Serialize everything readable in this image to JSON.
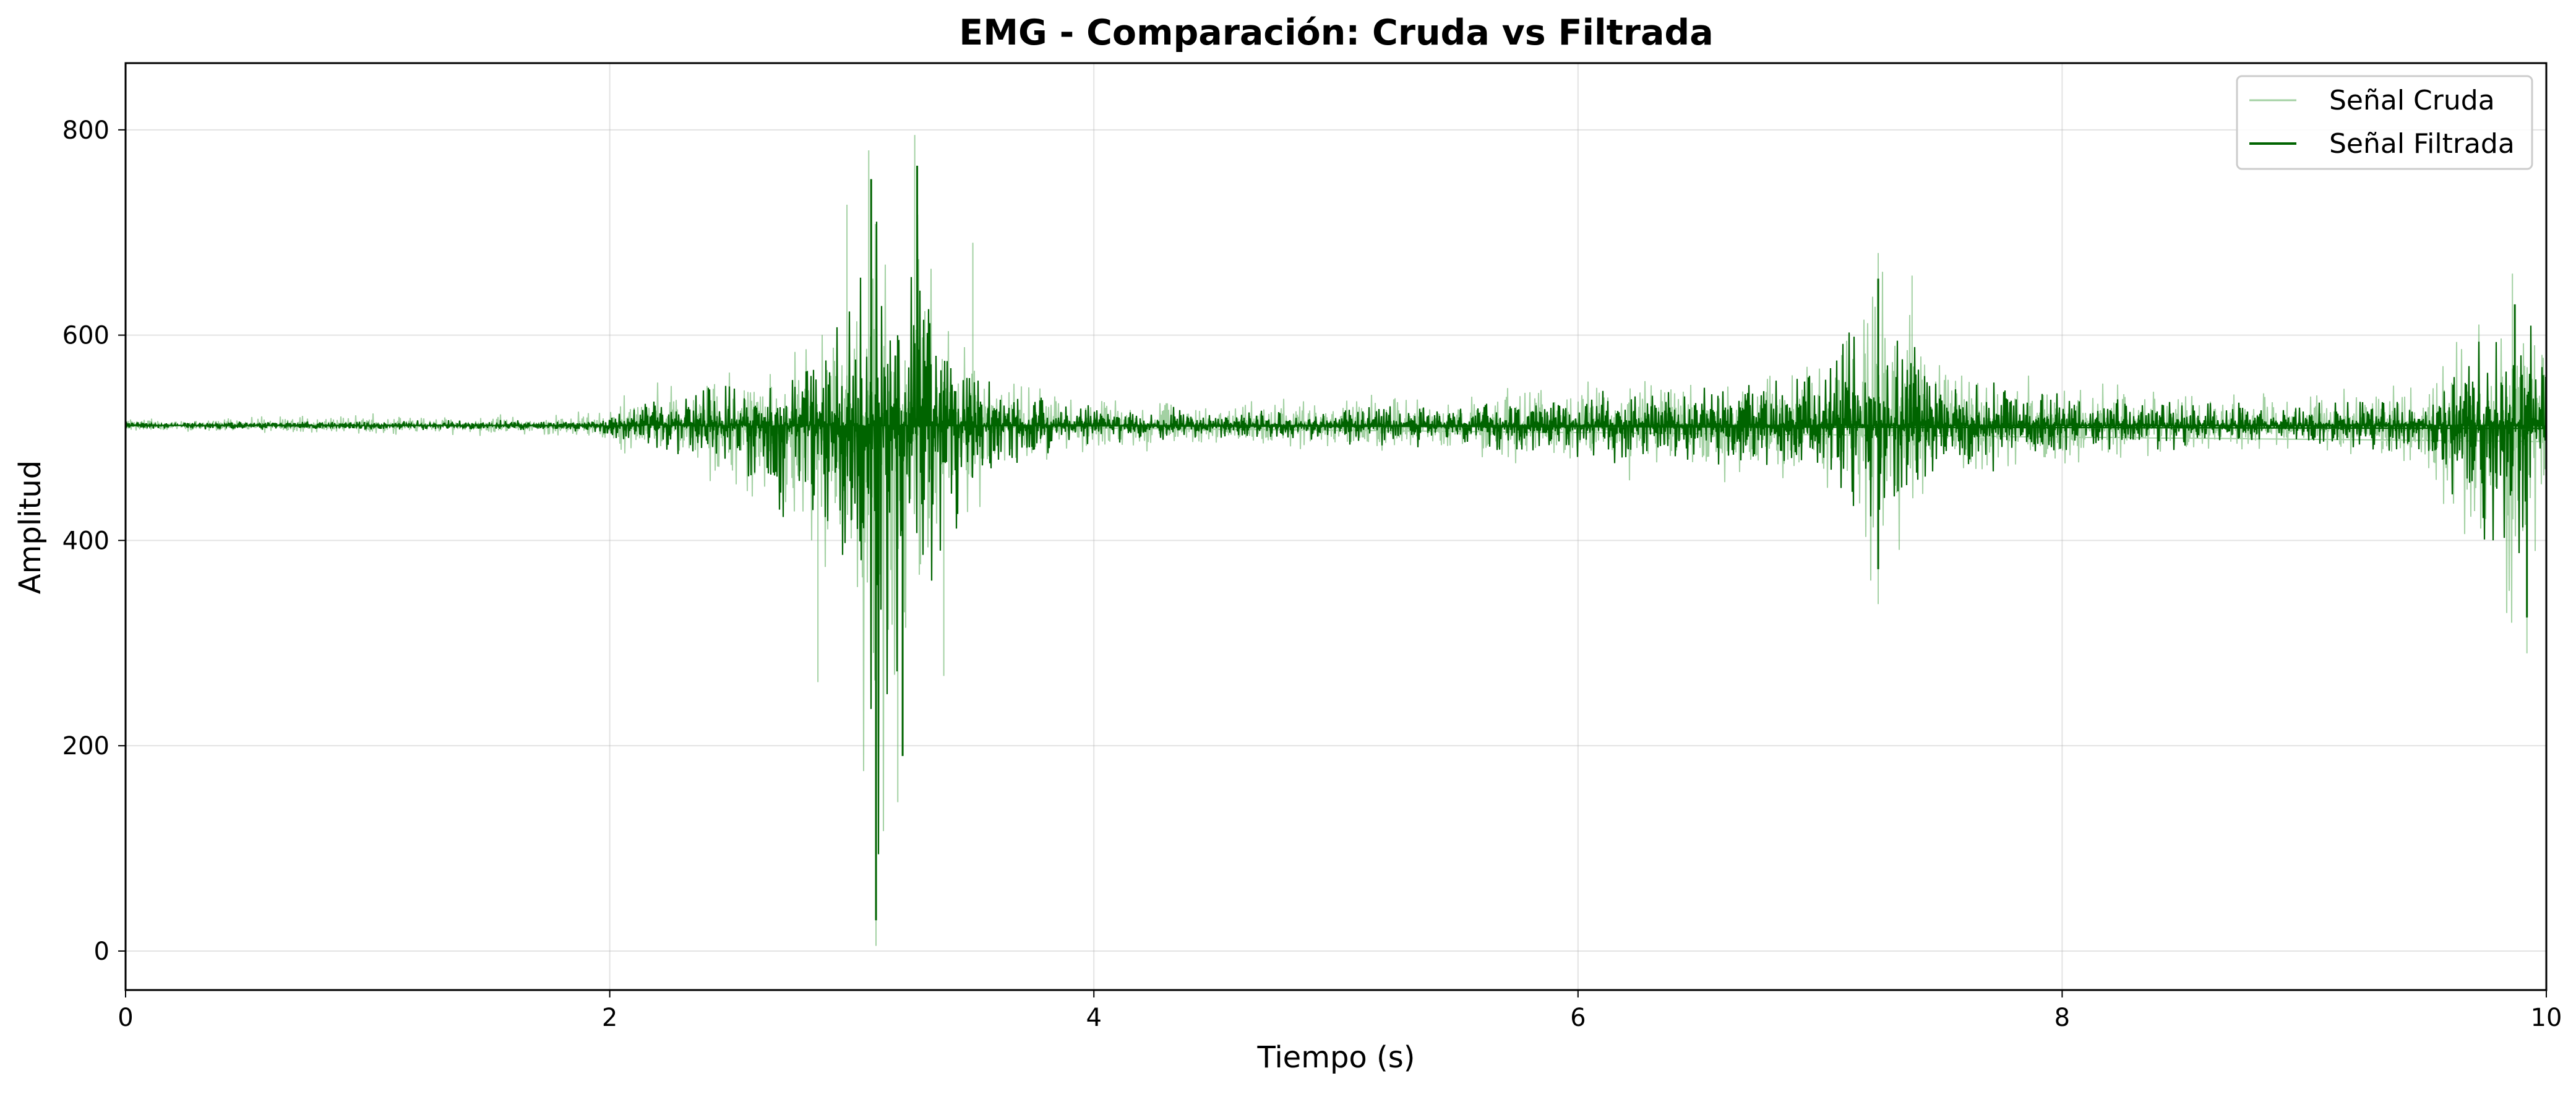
{
  "chart_data": {
    "type": "line",
    "title": "EMG - Comparación: Cruda vs Filtrada",
    "xlabel": "Tiempo (s)",
    "ylabel": "Amplitud",
    "xlim": [
      0,
      10
    ],
    "ylim": [
      -38,
      865
    ],
    "xticks": [
      0,
      2,
      4,
      6,
      8,
      10
    ],
    "yticks": [
      0,
      200,
      400,
      600,
      800
    ],
    "xtick_labels": [
      "0",
      "2",
      "4",
      "6",
      "8",
      "10"
    ],
    "ytick_labels": [
      "0",
      "200",
      "400",
      "600",
      "800"
    ],
    "grid": true,
    "legend_position": "top-right",
    "baseline": 512,
    "series": [
      {
        "name": "Señal Cruda",
        "color": "#66b266",
        "opacity": 0.6,
        "style": "thin",
        "envelope": {
          "x": [
            0,
            1.9,
            2.1,
            2.5,
            2.8,
            3.0,
            3.1,
            3.2,
            3.3,
            3.4,
            3.6,
            4.0,
            4.5,
            5.5,
            6.0,
            6.5,
            7.0,
            7.25,
            7.5,
            8.0,
            9.0,
            9.5,
            9.85,
            10.0
          ],
          "y_max": [
            522,
            526,
            548,
            580,
            600,
            660,
            780,
            740,
            795,
            620,
            570,
            545,
            540,
            545,
            565,
            570,
            585,
            680,
            590,
            560,
            548,
            565,
            660,
            640
          ],
          "y_min": [
            505,
            500,
            475,
            445,
            380,
            290,
            5,
            150,
            300,
            370,
            450,
            478,
            488,
            478,
            460,
            455,
            440,
            338,
            440,
            470,
            482,
            465,
            290,
            420
          ]
        },
        "peaks": [
          {
            "x": 2.86,
            "y": 262
          },
          {
            "x": 2.98,
            "y": 727
          },
          {
            "x": 3.07,
            "y": 780
          },
          {
            "x": 3.1,
            "y": 5
          },
          {
            "x": 3.19,
            "y": 145
          },
          {
            "x": 3.26,
            "y": 795
          },
          {
            "x": 3.38,
            "y": 268
          },
          {
            "x": 3.5,
            "y": 690
          },
          {
            "x": 7.24,
            "y": 680
          },
          {
            "x": 7.24,
            "y": 338
          },
          {
            "x": 7.38,
            "y": 658
          },
          {
            "x": 9.86,
            "y": 660
          },
          {
            "x": 9.92,
            "y": 290
          }
        ]
      },
      {
        "name": "Señal Filtrada",
        "color": "#006400",
        "opacity": 1,
        "style": "normal",
        "envelope": {
          "x": [
            0,
            1.9,
            2.1,
            2.5,
            2.8,
            3.0,
            3.1,
            3.2,
            3.3,
            3.4,
            3.6,
            4.0,
            4.5,
            5.5,
            6.0,
            6.5,
            7.0,
            7.25,
            7.5,
            8.0,
            9.0,
            9.5,
            9.85,
            10.0
          ],
          "y_max": [
            516,
            518,
            535,
            565,
            585,
            640,
            752,
            720,
            765,
            600,
            555,
            535,
            528,
            535,
            550,
            555,
            570,
            655,
            575,
            548,
            538,
            552,
            640,
            622
          ],
          "y_min": [
            508,
            506,
            490,
            460,
            400,
            310,
            30,
            190,
            320,
            390,
            465,
            490,
            498,
            488,
            472,
            465,
            455,
            372,
            455,
            480,
            490,
            475,
            325,
            440
          ]
        },
        "peaks": [
          {
            "x": 3.08,
            "y": 752
          },
          {
            "x": 3.1,
            "y": 30
          },
          {
            "x": 3.21,
            "y": 190
          },
          {
            "x": 3.27,
            "y": 765
          },
          {
            "x": 7.24,
            "y": 655
          },
          {
            "x": 7.24,
            "y": 372
          },
          {
            "x": 9.87,
            "y": 630
          },
          {
            "x": 9.92,
            "y": 325
          }
        ]
      }
    ]
  }
}
